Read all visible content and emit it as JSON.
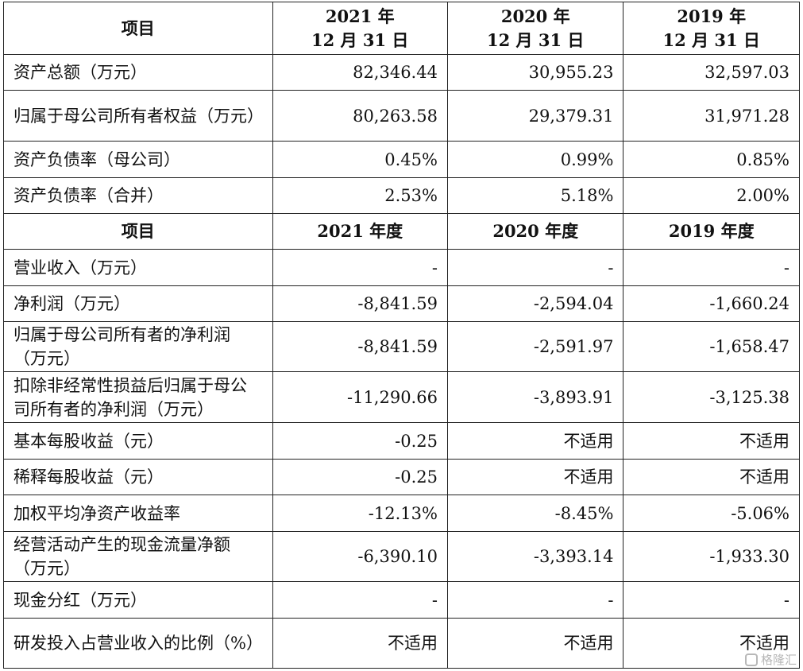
{
  "header1": {
    "item": "项目",
    "col2021_year": "2021 年",
    "col2021_date": "12 月 31 日",
    "col2020_year": "2020 年",
    "col2020_date": "12 月 31 日",
    "col2019_year": "2019 年",
    "col2019_date": "12 月 31 日"
  },
  "balance_rows": [
    {
      "label": "资产总额（万元）",
      "v2021": "82,346.44",
      "v2020": "30,955.23",
      "v2019": "32,597.03"
    },
    {
      "label": "归属于母公司所有者权益（万元）",
      "v2021": "80,263.58",
      "v2020": "29,379.31",
      "v2019": "31,971.28"
    },
    {
      "label": "资产负债率（母公司）",
      "v2021": "0.45%",
      "v2020": "0.99%",
      "v2019": "0.85%"
    },
    {
      "label": "资产负债率（合并）",
      "v2021": "2.53%",
      "v2020": "5.18%",
      "v2019": "2.00%"
    }
  ],
  "header2": {
    "item": "项目",
    "col2021": "2021 年度",
    "col2020": "2020 年度",
    "col2019": "2019 年度"
  },
  "income_rows": [
    {
      "label": "营业收入（万元）",
      "v2021": "-",
      "v2020": "-",
      "v2019": "-"
    },
    {
      "label": "净利润（万元）",
      "v2021": "-8,841.59",
      "v2020": "-2,594.04",
      "v2019": "-1,660.24"
    },
    {
      "label": "归属于母公司所有者的净利润（万元）",
      "v2021": "-8,841.59",
      "v2020": "-2,591.97",
      "v2019": "-1,658.47"
    },
    {
      "label": "扣除非经常性损益后归属于母公司所有者的净利润（万元）",
      "v2021": "-11,290.66",
      "v2020": "-3,893.91",
      "v2019": "-3,125.38"
    },
    {
      "label": "基本每股收益（元）",
      "v2021": "-0.25",
      "v2020": "不适用",
      "v2019": "不适用"
    },
    {
      "label": "稀释每股收益（元）",
      "v2021": "-0.25",
      "v2020": "不适用",
      "v2019": "不适用"
    },
    {
      "label": "加权平均净资产收益率",
      "v2021": "-12.13%",
      "v2020": "-8.45%",
      "v2019": "-5.06%"
    },
    {
      "label": "经营活动产生的现金流量净额（万元）",
      "v2021": "-6,390.10",
      "v2020": "-3,393.14",
      "v2019": "-1,933.30"
    },
    {
      "label": "现金分红（万元）",
      "v2021": "-",
      "v2020": "-",
      "v2019": "-"
    },
    {
      "label": "研发投入占营业收入的比例（%）",
      "v2021": "不适用",
      "v2020": "不适用",
      "v2019": "不适用"
    }
  ],
  "watermark": "格隆汇"
}
